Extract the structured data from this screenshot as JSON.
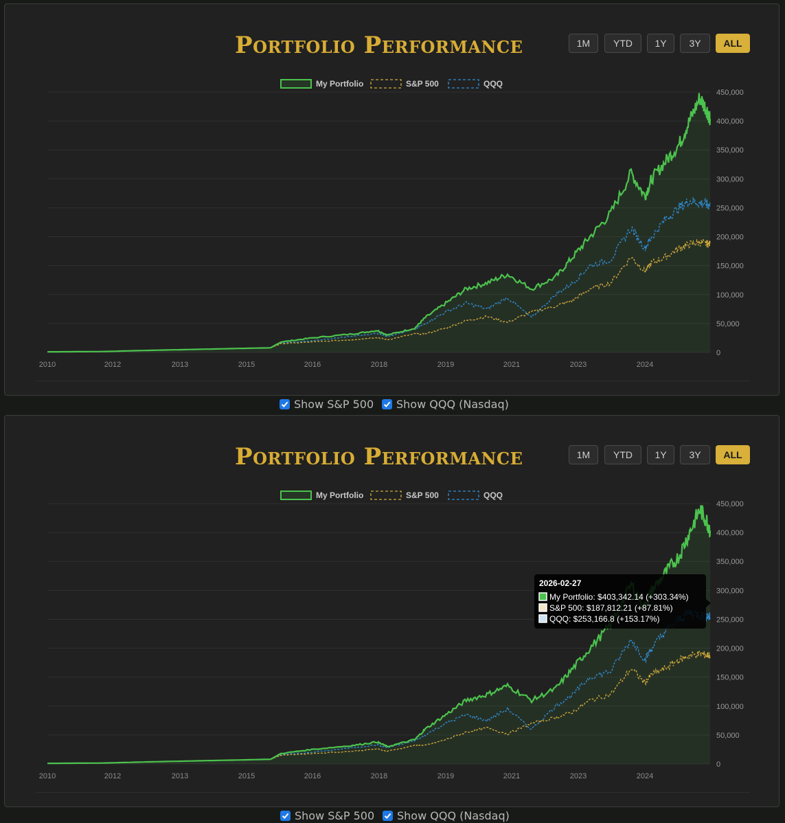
{
  "panels": [
    {
      "title": "Portfolio Performance",
      "range_buttons": [
        "1M",
        "YTD",
        "1Y",
        "3Y",
        "ALL"
      ],
      "active_range": "ALL",
      "toggles": {
        "sp500_label": "Show S&P 500",
        "qqq_label": "Show QQQ (Nasdaq)"
      },
      "tooltip": null
    },
    {
      "title": "Portfolio Performance",
      "range_buttons": [
        "1M",
        "YTD",
        "1Y",
        "3Y",
        "ALL"
      ],
      "active_range": "ALL",
      "toggles": {
        "sp500_label": "Show S&P 500",
        "qqq_label": "Show QQQ (Nasdaq)"
      },
      "tooltip": {
        "date": "2026-02-27",
        "lines": [
          "My Portfolio: $403,342.14 (+303.34%)",
          "S&P 500: $187,812.21 (+87.81%)",
          "QQQ: $253,166.8 (+153.17%)"
        ]
      }
    }
  ],
  "colors": {
    "portfolio": "#4cc34e",
    "sp500": "#d1ab3a",
    "qqq": "#2f8fd8",
    "accent": "#d8ad35"
  },
  "chart_data": [
    {
      "type": "line",
      "x_tick_labels": [
        "2010",
        "2012",
        "2013",
        "2015",
        "2016",
        "2018",
        "2019",
        "2021",
        "2023",
        "2024"
      ],
      "y_tick_labels": [
        "0",
        "50,000",
        "100,000",
        "150,000",
        "200,000",
        "250,000",
        "300,000",
        "350,000",
        "400,000",
        "450,000"
      ],
      "ylim": [
        0,
        450000
      ],
      "grid": true,
      "legend": "top-center",
      "x": [
        "2010-01",
        "2011-05",
        "2012-06",
        "2013-06",
        "2014-06",
        "2015-06",
        "2015-09",
        "2016-06",
        "2017-06",
        "2018-01",
        "2018-04",
        "2018-12",
        "2019-03",
        "2019-09",
        "2020-03",
        "2020-09",
        "2021-03",
        "2021-10",
        "2022-05",
        "2022-10",
        "2023-03",
        "2023-09",
        "2024-03",
        "2024-07",
        "2024-09",
        "2025-01",
        "2025-05",
        "2025-08",
        "2025-11",
        "2026-01",
        "2026-02"
      ],
      "series": [
        {
          "name": "My Portfolio",
          "style": "solid",
          "values": [
            1000,
            1500,
            3500,
            5000,
            6500,
            8000,
            18000,
            25000,
            32000,
            38000,
            30000,
            42000,
            60000,
            85000,
            110000,
            120000,
            135000,
            110000,
            130000,
            165000,
            200000,
            240000,
            310000,
            270000,
            300000,
            330000,
            360000,
            400000,
            440000,
            420000,
            403342
          ]
        },
        {
          "name": "S&P 500",
          "style": "dashed",
          "values": [
            1000,
            1500,
            3500,
            5000,
            6500,
            8000,
            15000,
            18000,
            22000,
            26000,
            22000,
            32000,
            32000,
            42000,
            55000,
            62000,
            52000,
            70000,
            80000,
            90000,
            110000,
            120000,
            165000,
            140000,
            155000,
            165000,
            180000,
            187000,
            190000,
            188000,
            187812
          ]
        },
        {
          "name": "QQQ",
          "style": "dashed",
          "values": [
            1000,
            1500,
            3500,
            5000,
            6500,
            8000,
            16000,
            20000,
            28000,
            33000,
            28000,
            40000,
            50000,
            70000,
            85000,
            75000,
            95000,
            60000,
            100000,
            120000,
            150000,
            160000,
            215000,
            180000,
            200000,
            230000,
            250000,
            262000,
            258000,
            256000,
            253167
          ]
        }
      ]
    },
    {
      "type": "line",
      "x_tick_labels": [
        "2010",
        "2012",
        "2013",
        "2015",
        "2016",
        "2018",
        "2019",
        "2021",
        "2023",
        "2024"
      ],
      "y_tick_labels": [
        "0",
        "50,000",
        "100,000",
        "150,000",
        "200,000",
        "250,000",
        "300,000",
        "350,000",
        "400,000",
        "450,000"
      ],
      "ylim": [
        0,
        450000
      ],
      "grid": true,
      "legend": "top-center",
      "x": [
        "2010-01",
        "2011-05",
        "2012-06",
        "2013-06",
        "2014-06",
        "2015-06",
        "2015-09",
        "2016-06",
        "2017-06",
        "2018-01",
        "2018-04",
        "2018-12",
        "2019-03",
        "2019-09",
        "2020-03",
        "2020-09",
        "2021-03",
        "2021-10",
        "2022-05",
        "2022-10",
        "2023-03",
        "2023-09",
        "2024-03",
        "2024-07",
        "2024-09",
        "2025-01",
        "2025-05",
        "2025-08",
        "2025-11",
        "2026-01",
        "2026-02"
      ],
      "series": [
        {
          "name": "My Portfolio",
          "style": "solid",
          "values": [
            1000,
            1500,
            3500,
            5000,
            6500,
            8000,
            18000,
            25000,
            32000,
            38000,
            30000,
            42000,
            60000,
            85000,
            110000,
            120000,
            135000,
            110000,
            130000,
            165000,
            200000,
            240000,
            310000,
            270000,
            300000,
            330000,
            360000,
            400000,
            440000,
            420000,
            403342
          ]
        },
        {
          "name": "S&P 500",
          "style": "dashed",
          "values": [
            1000,
            1500,
            3500,
            5000,
            6500,
            8000,
            15000,
            18000,
            22000,
            26000,
            22000,
            32000,
            32000,
            42000,
            55000,
            62000,
            52000,
            70000,
            80000,
            90000,
            110000,
            120000,
            165000,
            140000,
            155000,
            165000,
            180000,
            187000,
            190000,
            188000,
            187812
          ]
        },
        {
          "name": "QQQ",
          "style": "dashed",
          "values": [
            1000,
            1500,
            3500,
            5000,
            6500,
            8000,
            16000,
            20000,
            28000,
            33000,
            28000,
            40000,
            50000,
            70000,
            85000,
            75000,
            95000,
            60000,
            100000,
            120000,
            150000,
            160000,
            215000,
            180000,
            200000,
            230000,
            250000,
            262000,
            258000,
            256000,
            253167
          ]
        }
      ]
    }
  ]
}
